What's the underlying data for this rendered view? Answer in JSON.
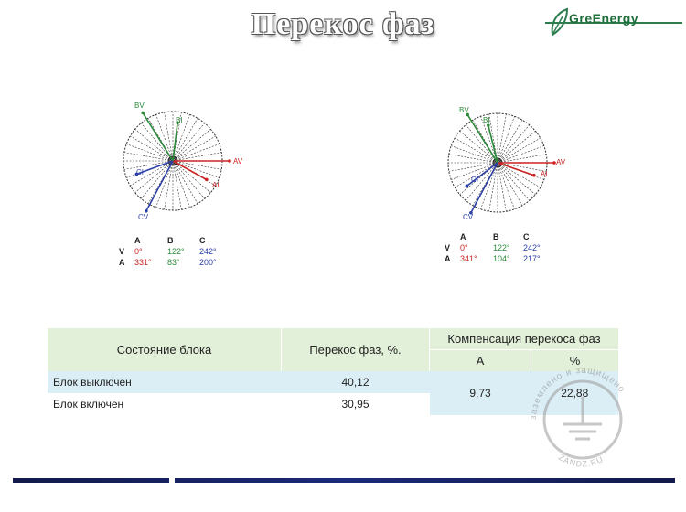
{
  "title": "Перекос фаз",
  "logo": {
    "text": "GreEnergy"
  },
  "diagrams": [
    {
      "labels": {
        "bv": "BV",
        "bi": "BI",
        "ci": "CI",
        "cv": "CV",
        "av": "AV",
        "ai": "AI"
      },
      "table": {
        "headers": [
          "A",
          "B",
          "C"
        ],
        "rows": [
          {
            "label": "V",
            "values": [
              "0°",
              "122°",
              "242°"
            ]
          },
          {
            "label": "A",
            "values": [
              "331°",
              "83°",
              "200°"
            ]
          }
        ]
      }
    },
    {
      "labels": {
        "bv": "BV",
        "bi": "BI",
        "ci": "CI",
        "cv": "CV",
        "av": "AV",
        "ai": "AI"
      },
      "table": {
        "headers": [
          "A",
          "B",
          "C"
        ],
        "rows": [
          {
            "label": "V",
            "values": [
              "0°",
              "122°",
              "242°"
            ]
          },
          {
            "label": "A",
            "values": [
              "341°",
              "104°",
              "217°"
            ]
          }
        ]
      }
    }
  ],
  "colors": {
    "a": "#cc2222",
    "b": "#2a8a3a",
    "c": "#2c3fa8"
  },
  "main_table": {
    "col_state": "Состояние блока",
    "col_skew": "Перекос фаз, %.",
    "col_comp": "Компенсация перекоса фаз",
    "sub_a": "А",
    "sub_pct": "%",
    "rows": [
      {
        "state": "Блок выключен",
        "skew": "40,12"
      },
      {
        "state": "Блок включен",
        "skew": "30,95"
      }
    ],
    "comp_a": "9,73",
    "comp_pct": "22,88"
  },
  "watermark": {
    "text_top": "заземлено и защищено",
    "text_bottom": "ZANDZ.RU"
  }
}
